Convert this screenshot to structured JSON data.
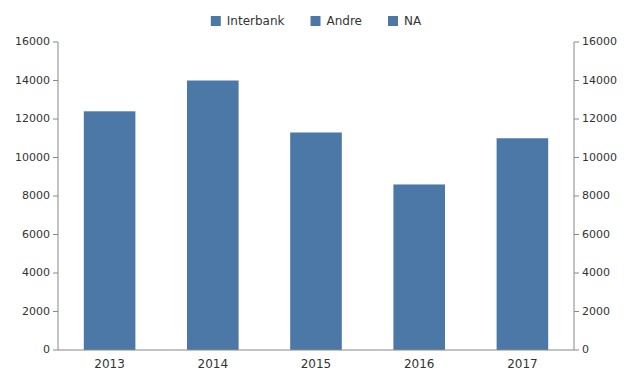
{
  "chart_data": {
    "type": "bar",
    "categories": [
      "2013",
      "2014",
      "2015",
      "2016",
      "2017"
    ],
    "values": [
      12400,
      14000,
      11300,
      8600,
      11000
    ],
    "ylim": [
      0,
      16000
    ],
    "yticks": [
      0,
      2000,
      4000,
      6000,
      8000,
      10000,
      12000,
      14000,
      16000
    ],
    "y2lim": [
      0,
      16000
    ],
    "y2ticks": [
      0,
      2000,
      4000,
      6000,
      8000,
      10000,
      12000,
      14000,
      16000
    ],
    "legend_labels": [
      "Interbank",
      "Andre",
      "NA"
    ],
    "legend": "top",
    "grid": false
  }
}
